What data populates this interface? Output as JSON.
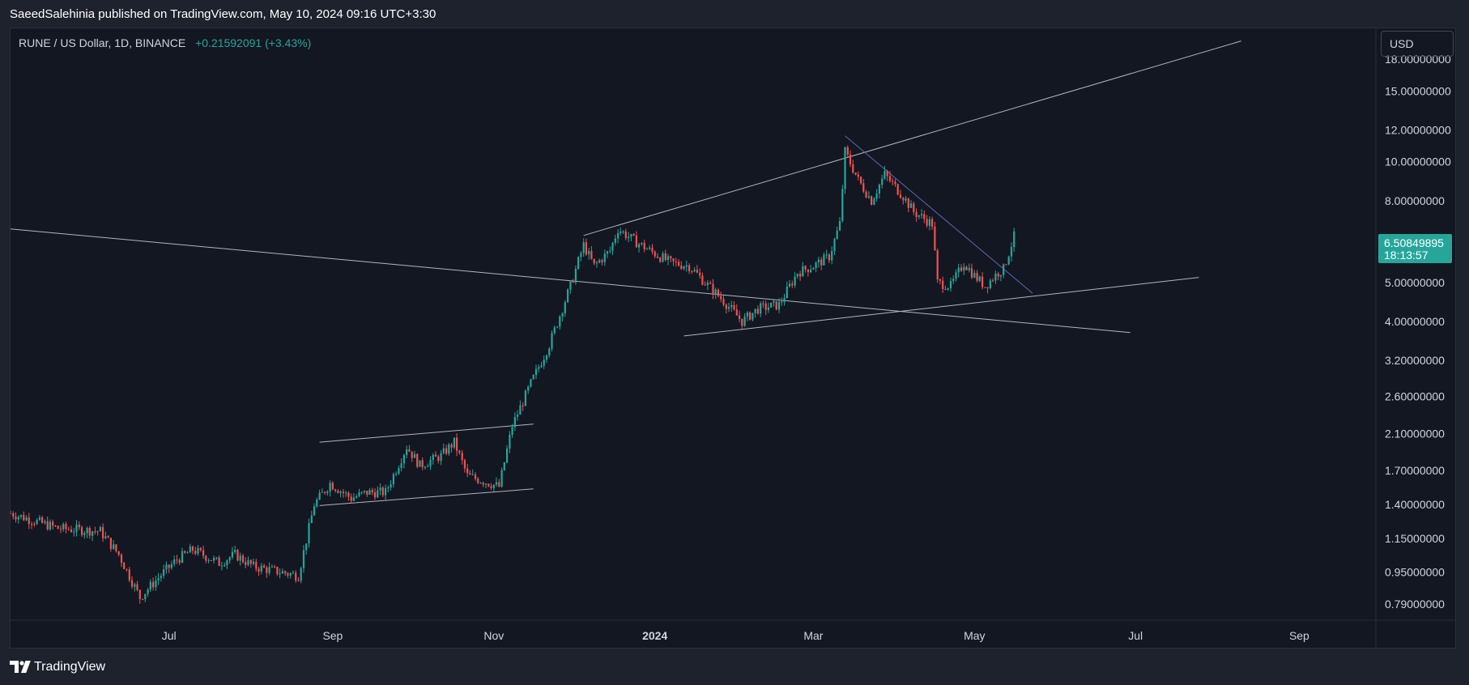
{
  "header": {
    "publish_line": "SaeedSalehinia published on TradingView.com, May 10, 2024 09:16 UTC+3:30"
  },
  "legend": {
    "symbol": "RUNE / US Dollar, 1D, BINANCE",
    "change": "+0.21592091 (+3.43%)"
  },
  "price_scale": {
    "currency": "USD",
    "labels": [
      "18.00000000",
      "15.00000000",
      "12.00000000",
      "10.00000000",
      "8.00000000",
      "5.00000000",
      "4.00000000",
      "3.20000000",
      "2.60000000",
      "2.10000000",
      "1.70000000",
      "1.40000000",
      "1.15000000",
      "0.95000000",
      "0.79000000"
    ],
    "last_price": "6.50849895",
    "countdown": "18:13:57"
  },
  "time_scale": {
    "labels": [
      "Jul",
      "Sep",
      "Nov",
      "2024",
      "Mar",
      "May",
      "Jul",
      "Sep"
    ]
  },
  "footer": {
    "brand": "TradingView"
  },
  "colors": {
    "background": "#131722",
    "up": "#26a69a",
    "down": "#ef5350",
    "trendline": "#b2b5be",
    "blue_trendline": "#5b6cb8"
  },
  "chart_data": {
    "type": "candlestick",
    "y_scale": "log",
    "x_start": "2023-05-02",
    "x_end": "2024-09-30",
    "ylim": [
      0.72,
      21.5
    ],
    "points": [
      [
        "2023-05-02",
        1.33
      ],
      [
        "2023-05-20",
        1.22
      ],
      [
        "2023-06-05",
        1.2
      ],
      [
        "2023-06-12",
        1.05
      ],
      [
        "2023-06-20",
        0.82
      ],
      [
        "2023-06-27",
        0.92
      ],
      [
        "2023-07-04",
        1.02
      ],
      [
        "2023-07-10",
        1.08
      ],
      [
        "2023-07-20",
        1.0
      ],
      [
        "2023-07-26",
        1.05
      ],
      [
        "2023-08-02",
        0.98
      ],
      [
        "2023-08-12",
        0.95
      ],
      [
        "2023-08-19",
        0.93
      ],
      [
        "2023-08-25",
        1.4
      ],
      [
        "2023-08-31",
        1.58
      ],
      [
        "2023-09-08",
        1.45
      ],
      [
        "2023-09-14",
        1.5
      ],
      [
        "2023-09-21",
        1.5
      ],
      [
        "2023-09-29",
        1.95
      ],
      [
        "2023-10-04",
        1.75
      ],
      [
        "2023-10-12",
        1.85
      ],
      [
        "2023-10-17",
        2.0
      ],
      [
        "2023-10-22",
        1.65
      ],
      [
        "2023-10-28",
        1.6
      ],
      [
        "2023-11-03",
        1.55
      ],
      [
        "2023-11-08",
        2.2
      ],
      [
        "2023-11-15",
        2.8
      ],
      [
        "2023-11-22",
        3.5
      ],
      [
        "2023-11-30",
        4.9
      ],
      [
        "2023-12-05",
        6.2
      ],
      [
        "2023-12-09",
        5.5
      ],
      [
        "2023-12-15",
        6.0
      ],
      [
        "2023-12-18",
        6.8
      ],
      [
        "2023-12-25",
        6.3
      ],
      [
        "2024-01-01",
        5.9
      ],
      [
        "2024-01-07",
        5.6
      ],
      [
        "2024-01-14",
        5.5
      ],
      [
        "2024-01-20",
        5.0
      ],
      [
        "2024-01-27",
        4.5
      ],
      [
        "2024-02-03",
        4.0
      ],
      [
        "2024-02-09",
        4.3
      ],
      [
        "2024-02-17",
        4.4
      ],
      [
        "2024-02-24",
        5.3
      ],
      [
        "2024-03-01",
        5.5
      ],
      [
        "2024-03-07",
        5.8
      ],
      [
        "2024-03-11",
        7.0
      ],
      [
        "2024-03-13",
        10.6
      ],
      [
        "2024-03-18",
        9.0
      ],
      [
        "2024-03-23",
        8.0
      ],
      [
        "2024-03-28",
        9.3
      ],
      [
        "2024-04-04",
        8.2
      ],
      [
        "2024-04-08",
        7.5
      ],
      [
        "2024-04-15",
        7.0
      ],
      [
        "2024-04-17",
        5.0
      ],
      [
        "2024-04-22",
        4.9
      ],
      [
        "2024-04-27",
        5.6
      ],
      [
        "2024-05-01",
        5.2
      ],
      [
        "2024-05-05",
        4.9
      ],
      [
        "2024-05-10",
        5.3
      ],
      [
        "2024-05-12",
        5.4
      ],
      [
        "2024-05-16",
        6.51
      ]
    ],
    "trendlines": [
      {
        "from": [
          "2023-05-02",
          6.8
        ],
        "to": [
          "2024-06-29",
          3.75
        ]
      },
      {
        "from": [
          "2023-12-05",
          6.55
        ],
        "to": [
          "2024-08-10",
          20.0
        ]
      },
      {
        "from": [
          "2024-01-12",
          3.68
        ],
        "to": [
          "2024-07-25",
          5.15
        ]
      },
      {
        "from": [
          "2024-03-13",
          11.6
        ],
        "to": [
          "2024-05-23",
          4.7
        ]
      },
      {
        "from": [
          "2023-08-27",
          2.0
        ],
        "to": [
          "2023-11-16",
          2.22
        ]
      },
      {
        "from": [
          "2023-08-27",
          1.39
        ],
        "to": [
          "2023-11-16",
          1.53
        ]
      }
    ]
  }
}
